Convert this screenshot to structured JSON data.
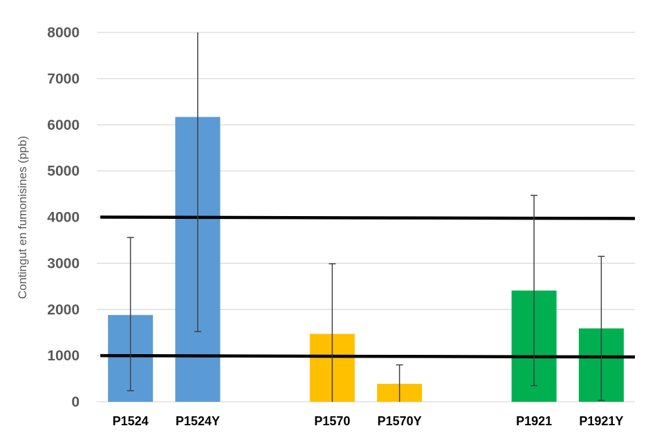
{
  "chart_data": {
    "type": "bar",
    "title": "",
    "xlabel": "",
    "ylabel": "Contingut en fumonisines (ppb)",
    "ylim": [
      0,
      8000
    ],
    "yticks": [
      0,
      1000,
      2000,
      3000,
      4000,
      5000,
      6000,
      7000,
      8000
    ],
    "grid": true,
    "legend": "none",
    "categories": [
      "P1524",
      "P1524Y",
      "",
      "P1570",
      "P1570Y",
      "",
      "P1921",
      "P1921Y"
    ],
    "values": [
      1880,
      6170,
      null,
      1470,
      390,
      null,
      2410,
      1590
    ],
    "error_low": [
      240,
      1520,
      null,
      0,
      0,
      null,
      350,
      30
    ],
    "error_high": [
      3560,
      8000,
      null,
      2990,
      800,
      null,
      4470,
      3150
    ],
    "bar_colors": [
      "#5B9BD5",
      "#5B9BD5",
      null,
      "#FFC000",
      "#FFC000",
      null,
      "#00B050",
      "#00B050"
    ],
    "reference_lines": [
      4000,
      1000
    ]
  }
}
